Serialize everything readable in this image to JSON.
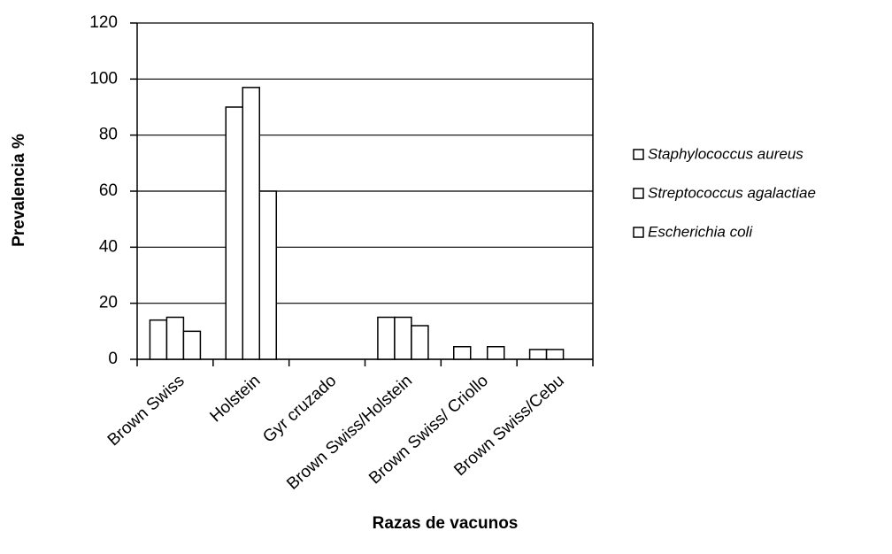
{
  "chart_data": {
    "type": "bar",
    "x_label": "Razas de vacunos",
    "y_label": "Prevalencia %",
    "categories": [
      "Brown Swiss",
      "Holstein",
      "Gyr cruzado",
      "Brown Swiss/Holstein",
      "Brown Swiss/ Criollo",
      "Brown Swiss/Cebu"
    ],
    "series": [
      {
        "name": "Staphylococcus aureus",
        "color": "#ffffff",
        "values": [
          14,
          90,
          0,
          15,
          4.5,
          3.5
        ]
      },
      {
        "name": "Streptococcus agalactiae",
        "color": "#ffffff",
        "values": [
          15,
          97,
          0,
          15,
          0,
          3.5
        ]
      },
      {
        "name": "Escherichia coli",
        "color": "#ffffff",
        "values": [
          10,
          60,
          0,
          12,
          4.5,
          0
        ]
      }
    ],
    "ylim": [
      0,
      120
    ],
    "yticks": [
      0,
      20,
      40,
      60,
      80,
      100,
      120
    ],
    "grid": true,
    "legend": "right"
  }
}
